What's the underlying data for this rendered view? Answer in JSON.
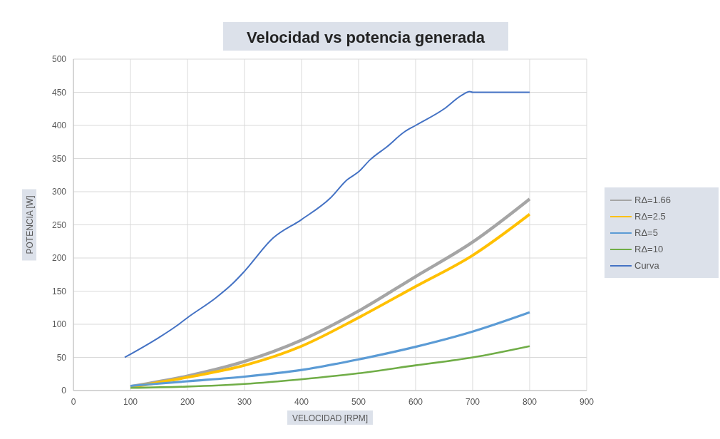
{
  "chart_data": {
    "type": "line",
    "title": "Velocidad vs potencia generada",
    "xlabel": "VELOCIDAD [RPM]",
    "ylabel": "POTENCIA [W]",
    "xlim": [
      0,
      900
    ],
    "xticks": [
      0,
      100,
      200,
      300,
      400,
      500,
      600,
      700,
      800,
      900
    ],
    "ylim": [
      0,
      500
    ],
    "yticks": [
      0,
      50,
      100,
      150,
      200,
      250,
      300,
      350,
      400,
      450,
      500
    ],
    "grid": true,
    "legend": "right",
    "series": [
      {
        "name": "RΔ=1.66",
        "color": "#a5a5a5",
        "x": [
          100,
          200,
          300,
          400,
          500,
          600,
          700,
          800
        ],
        "values": [
          6,
          22,
          44,
          76,
          120,
          172,
          224,
          289
        ]
      },
      {
        "name": "RΔ=2.5",
        "color": "#ffc000",
        "x": [
          100,
          200,
          300,
          400,
          500,
          600,
          700,
          800
        ],
        "values": [
          5,
          20,
          38,
          67,
          110,
          157,
          204,
          266
        ]
      },
      {
        "name": "RΔ=5",
        "color": "#5b9bd5",
        "x": [
          100,
          200,
          300,
          400,
          500,
          600,
          700,
          800
        ],
        "values": [
          7,
          14,
          21,
          31,
          47,
          66,
          89,
          118
        ]
      },
      {
        "name": "RΔ=10",
        "color": "#70ad47",
        "x": [
          100,
          200,
          300,
          400,
          500,
          600,
          700,
          800
        ],
        "values": [
          4,
          6,
          10,
          17,
          26,
          38,
          50,
          67
        ]
      },
      {
        "name": "Curva",
        "color": "#4472c4",
        "x": [
          90,
          150,
          180,
          200,
          250,
          280,
          300,
          350,
          400,
          450,
          480,
          500,
          520,
          550,
          580,
          600,
          650,
          680,
          695,
          700,
          800
        ],
        "values": [
          50,
          80,
          97,
          110,
          140,
          162,
          180,
          230,
          258,
          290,
          318,
          330,
          348,
          368,
          390,
          400,
          425,
          445,
          451,
          450,
          450
        ]
      }
    ]
  }
}
